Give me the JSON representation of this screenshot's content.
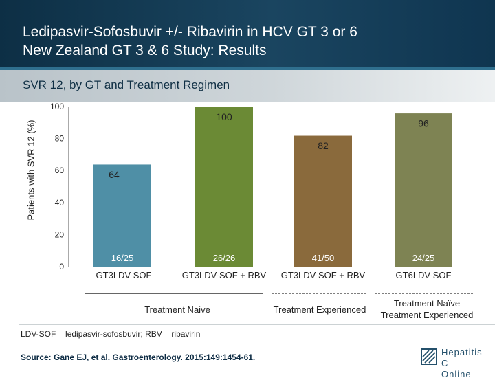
{
  "header": {
    "title_line1": "Ledipasvir-Sofosbuvir +/- Ribavirin in HCV GT 3 or 6",
    "title_line2": "New Zealand GT 3 & 6 Study: Results"
  },
  "subtitle": "SVR 12, by GT and Treatment Regimen",
  "chart_data": {
    "type": "bar",
    "ylabel": "Patients with SVR 12 (%)",
    "ylim": [
      0,
      100
    ],
    "yticks": [
      0,
      20,
      40,
      60,
      80,
      100
    ],
    "grid": false,
    "categories": [
      "GT3LDV-SOF",
      "GT3LDV-SOF + RBV",
      "GT3LDV-SOF + RBV",
      "GT6LDV-SOF"
    ],
    "values": [
      64,
      100,
      82,
      96
    ],
    "value_labels": [
      "64",
      "100",
      "82",
      "96"
    ],
    "fractions": [
      "16/25",
      "26/26",
      "41/50",
      "24/25"
    ],
    "colors": [
      "#4f8fa6",
      "#6b8a35",
      "#8a6a3c",
      "#7e8353"
    ],
    "groups": [
      {
        "label": "Treatment Naive",
        "bars": [
          0,
          1
        ]
      },
      {
        "label": "Treatment Experienced",
        "bars": [
          2
        ]
      },
      {
        "label_line1": "Treatment Naïve",
        "label_line2": "Treatment Experienced",
        "bars": [
          3
        ]
      }
    ]
  },
  "footnote": "LDV-SOF = ledipasvir-sofosbuvir; RBV = ribavirin",
  "source": "Source: Gane EJ, et al. Gastroenterology. 2015:149:1454-61.",
  "logo": {
    "line1": "Hepatitis C",
    "line2": "Online",
    "icon": "hepatitis-c-online-logo-icon"
  }
}
